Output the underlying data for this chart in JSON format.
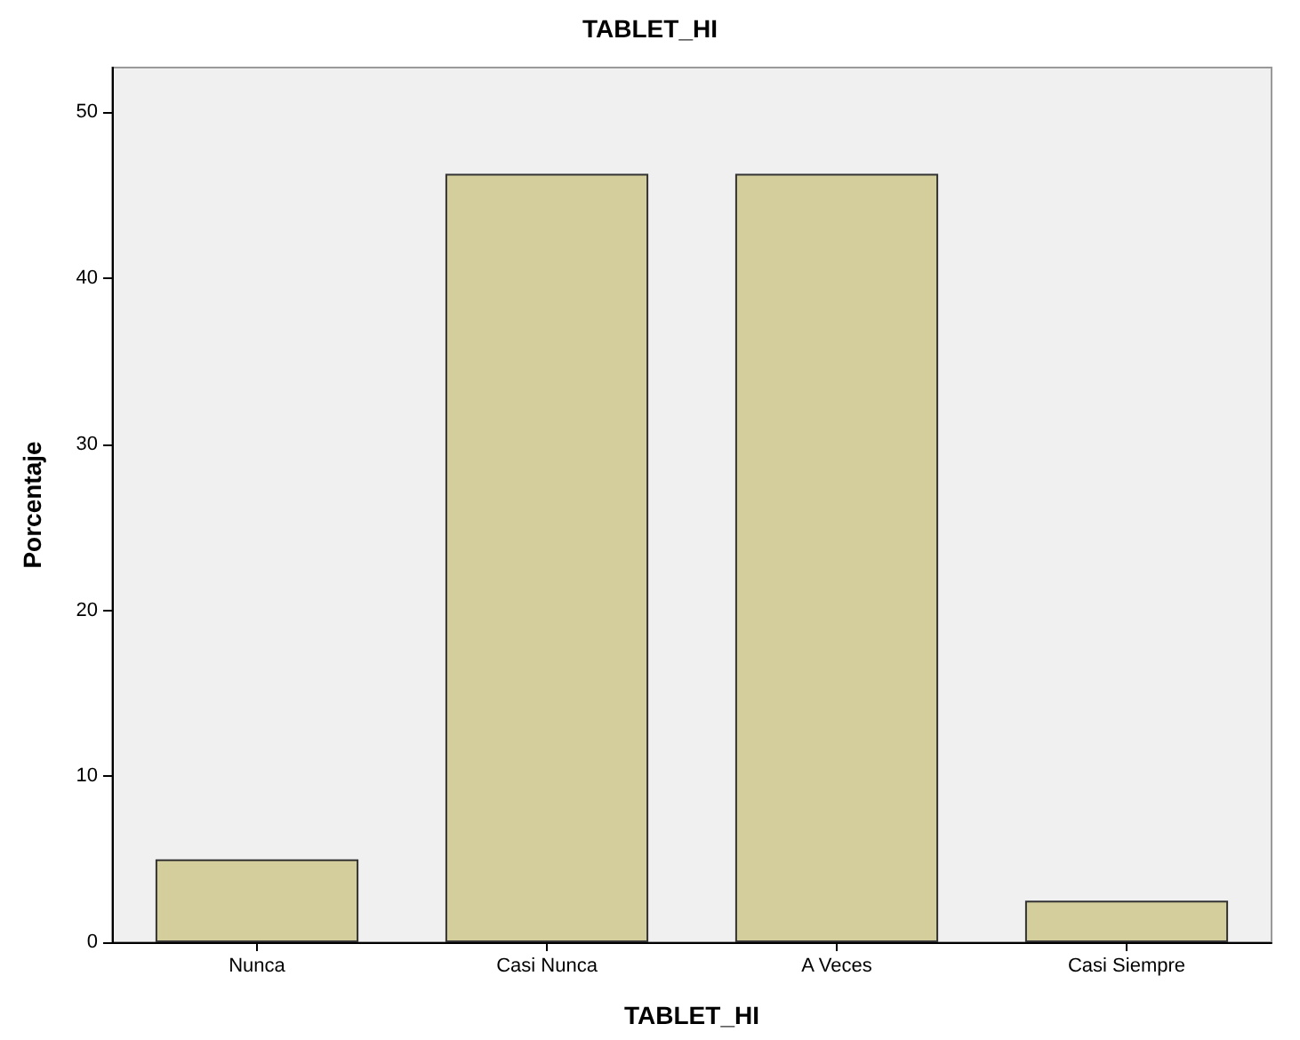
{
  "chart_data": {
    "type": "bar",
    "title": "TABLET_HI",
    "xlabel": "TABLET_HI",
    "ylabel": "Porcentaje",
    "categories": [
      "Nunca",
      "Casi Nunca",
      "A Veces",
      "Casi Siempre"
    ],
    "values": [
      5.0,
      46.3,
      46.3,
      2.5
    ],
    "color": "#d3ce9b",
    "ylim": [
      0,
      52.7
    ],
    "yticks": [
      0,
      10,
      20,
      30,
      40,
      50
    ]
  }
}
